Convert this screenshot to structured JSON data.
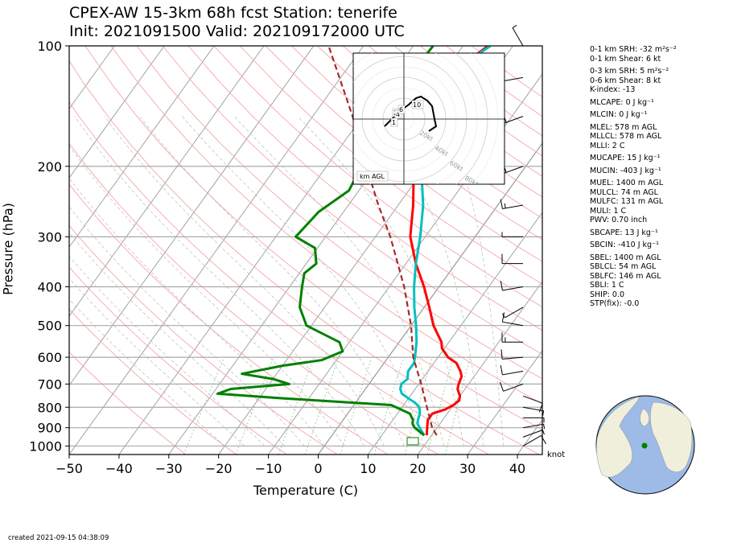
{
  "title_line1": "CPEX-AW 15-3km  68h fcst  Station: tenerife",
  "title_line2": "Init: 2021091500  Valid: 202109172000 UTC",
  "created": "created 2021-09-15 04:38:09",
  "knot_label": "knot",
  "hodo_label": "km AGL",
  "params": [
    {
      "label": "0-1 km SRH: -32 m²s⁻²",
      "gap": false
    },
    {
      "label": "0-1 km Shear: 6 kt",
      "gap": false
    },
    {
      "label": "0-3 km SRH: 5 m²s⁻²",
      "gap": true
    },
    {
      "label": "0-6 km Shear: 8 kt",
      "gap": false
    },
    {
      "label": "K-index: -13",
      "gap": false
    },
    {
      "label": "MLCAPE: 0 J kg⁻¹",
      "gap": true
    },
    {
      "label": "MLCIN: 0 J kg⁻¹",
      "gap": true
    },
    {
      "label": "MLEL: 578 m AGL",
      "gap": true
    },
    {
      "label": "MLLCL: 578 m AGL",
      "gap": false
    },
    {
      "label": "MLLI: 2 C",
      "gap": false
    },
    {
      "label": "MUCAPE: 15 J kg⁻¹",
      "gap": true
    },
    {
      "label": "MUCIN: -403 J kg⁻¹",
      "gap": true
    },
    {
      "label": "MUEL: 1400 m AGL",
      "gap": true
    },
    {
      "label": "MULCL: 74 m AGL",
      "gap": false
    },
    {
      "label": "MULFC: 131 m AGL",
      "gap": false
    },
    {
      "label": "MULI: 1 C",
      "gap": false
    },
    {
      "label": "PWV: 0.70 inch",
      "gap": false
    },
    {
      "label": "SBCAPE: 13 J kg⁻¹",
      "gap": true
    },
    {
      "label": "SBCIN: -410 J kg⁻¹",
      "gap": true
    },
    {
      "label": "SBEL: 1400 m AGL",
      "gap": true
    },
    {
      "label": "SBLCL: 54 m AGL",
      "gap": false
    },
    {
      "label": "SBLFC: 146 m AGL",
      "gap": false
    },
    {
      "label": "SBLI: 1 C",
      "gap": false
    },
    {
      "label": "SHIP: 0.0",
      "gap": false
    },
    {
      "label": "STP(fix): -0.0",
      "gap": false
    }
  ],
  "chart_data": {
    "type": "line",
    "title": "CPEX-AW 15-3km  68h fcst  Station: tenerife",
    "xlabel": "Temperature (C)",
    "ylabel": "Pressure (hPa)",
    "xlim": [
      -50,
      45
    ],
    "ylim": [
      1050,
      100
    ],
    "y_scale": "log",
    "x_ticks": [
      -50,
      -40,
      -30,
      -20,
      -10,
      0,
      10,
      20,
      30,
      40
    ],
    "y_ticks": [
      100,
      200,
      300,
      400,
      500,
      600,
      700,
      800,
      900,
      1000
    ],
    "series": [
      {
        "name": "",
        "color": "#ff0000",
        "pressure": [
          940,
          900,
          880,
          860,
          830,
          810,
          790,
          770,
          750,
          720,
          700,
          670,
          650,
          620,
          600,
          570,
          550,
          500,
          450,
          400,
          350,
          300,
          250,
          200,
          175,
          150,
          125,
          110,
          100
        ],
        "values": [
          19,
          18,
          17.5,
          17,
          17,
          19,
          20,
          20.5,
          20,
          18.5,
          18,
          17.5,
          16.5,
          14.5,
          12,
          9.5,
          8.5,
          4.5,
          1,
          -3,
          -8,
          -13,
          -17,
          -22.5,
          -25,
          -27,
          -27.5,
          -27,
          -25
        ]
      },
      {
        "name": "",
        "color": "#00c0c0",
        "pressure": [
          940,
          910,
          880,
          860,
          830,
          800,
          780,
          760,
          740,
          720,
          700,
          680,
          650,
          620,
          590,
          550,
          500,
          450,
          400,
          350,
          300,
          250,
          200,
          175,
          150,
          125,
          110,
          100
        ],
        "values": [
          18.5,
          17,
          15.5,
          15,
          14.5,
          13.5,
          12,
          10,
          8,
          7,
          6.5,
          7,
          6,
          6,
          5,
          3.5,
          1,
          -2,
          -5,
          -8,
          -11,
          -15,
          -21,
          -25,
          -26.5,
          -27,
          -27,
          -24.5
        ]
      },
      {
        "name": "",
        "color": "#008000",
        "pressure": [
          940,
          920,
          900,
          880,
          860,
          830,
          790,
          760,
          740,
          720,
          700,
          680,
          660,
          630,
          610,
          580,
          550,
          500,
          450,
          400,
          370,
          350,
          320,
          300,
          260,
          230,
          200,
          160,
          140,
          120,
          100
        ],
        "values": [
          18.5,
          17,
          15.5,
          14.5,
          14,
          12.5,
          7.5,
          -15,
          -29,
          -27,
          -16,
          -20,
          -27,
          -20,
          -13,
          -10,
          -12,
          -21,
          -25,
          -27.5,
          -29,
          -28,
          -30.5,
          -36,
          -35,
          -32,
          -33,
          -33,
          -36,
          -36.5,
          -36
        ]
      },
      {
        "name": "",
        "color": "#a52a2a",
        "style": "dashed",
        "pressure": [
          940,
          900,
          800,
          700,
          600,
          500,
          400,
          300,
          250,
          200,
          150,
          100
        ],
        "values": [
          21,
          19,
          15,
          10.5,
          5,
          0,
          -7,
          -17,
          -24,
          -32,
          -42,
          -57
        ]
      }
    ],
    "hodograph": {
      "rings_kt": [
        20,
        40,
        60,
        80
      ],
      "ring_labels": [
        "20kt",
        "40kt",
        "60kt",
        "80kt"
      ],
      "height_labels": [
        "1",
        "2",
        "4",
        "6",
        "10"
      ]
    },
    "wind_barbs": {
      "pressure": [
        1000,
        950,
        900,
        850,
        800,
        750,
        700,
        650,
        600,
        550,
        500,
        450,
        400,
        350,
        300,
        250,
        200,
        150,
        120,
        100
      ],
      "speed_kt": [
        10,
        8,
        7,
        6,
        8,
        10,
        12,
        14,
        14,
        15,
        10,
        6,
        12,
        10,
        8,
        15,
        18,
        20,
        10,
        8
      ],
      "dir_deg": [
        60,
        70,
        80,
        90,
        100,
        110,
        250,
        260,
        265,
        270,
        280,
        240,
        260,
        270,
        270,
        260,
        250,
        250,
        260,
        330
      ]
    }
  }
}
